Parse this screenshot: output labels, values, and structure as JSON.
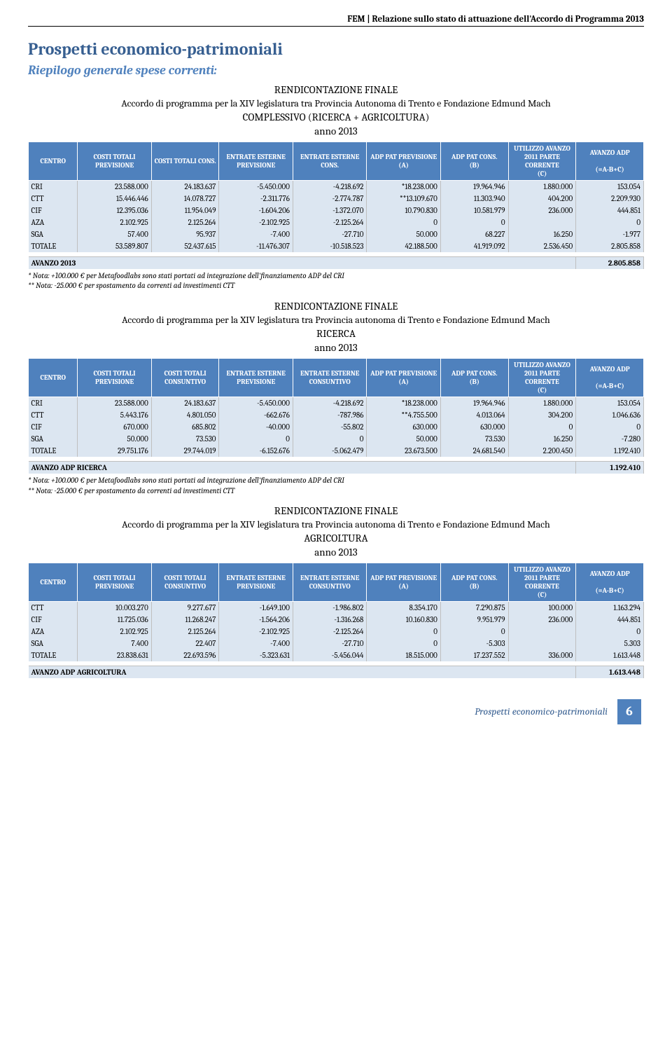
{
  "header": {
    "running": "FEM | Relazione sullo stato di attuazione dell'Accordo di Programma 2013"
  },
  "titles": {
    "h1": "Prospetti economico-patrimoniali",
    "h2": "Riepilogo generale spese correnti:"
  },
  "columns": {
    "centro": "CENTRO",
    "costi_prev": "COSTI TOTALI PREVISIONE",
    "costi_cons": "COSTI TOTALI CONS.",
    "costi_consuntivo": "COSTI TOTALI CONSUNTIVO",
    "entrate_prev": "ENTRATE ESTERNE PREVISIONE",
    "entrate_cons": "ENTRATE ESTERNE CONS.",
    "entrate_consuntivo": "ENTRATE ESTERNE CONSUNTIVO",
    "adp_prev": "ADP PAT PREVISIONE",
    "adp_prev_a": "(A)",
    "adp_cons": "ADP PAT CONS.",
    "adp_cons_b": "(B)",
    "utilizzo": "UTILIZZO AVANZO 2011 PARTE CORRENTE",
    "utilizzo_c": "(C)",
    "avanzo": "AVANZO ADP",
    "avanzo_f": "(=A-B+C)"
  },
  "section1": {
    "title": "RENDICONTAZIONE FINALE",
    "sub": "Accordo di programma per la XIV legislatura tra Provincia Autonoma di Trento e Fondazione Edmund Mach",
    "big": "COMPLESSIVO (RICERCA + AGRICOLTURA)",
    "year": "anno 2013",
    "rows": [
      {
        "c": "CRI",
        "v": [
          "23.588.000",
          "24.183.637",
          "-5.450.000",
          "-4.218.692",
          "*18.238.000",
          "19.964.946",
          "1.880.000",
          "153.054"
        ]
      },
      {
        "c": "CTT",
        "v": [
          "15.446.446",
          "14.078.727",
          "-2.311.776",
          "-2.774.787",
          "**13.109.670",
          "11.303.940",
          "404.200",
          "2.209.930"
        ]
      },
      {
        "c": "CIF",
        "v": [
          "12.395.036",
          "11.954.049",
          "-1.604.206",
          "-1.372.070",
          "10.790.830",
          "10.581.979",
          "236.000",
          "444.851"
        ]
      },
      {
        "c": "AZA",
        "v": [
          "2.102.925",
          "2.125.264",
          "-2.102.925",
          "-2.125.264",
          "0",
          "0",
          "",
          "0"
        ]
      },
      {
        "c": "SGA",
        "v": [
          "57.400",
          "95.937",
          "-7.400",
          "-27.710",
          "50.000",
          "68.227",
          "16.250",
          "-1.977"
        ]
      },
      {
        "c": "TOTALE",
        "v": [
          "53.589.807",
          "52.437.615",
          "-11.476.307",
          "-10.518.523",
          "42.188.500",
          "41.919.092",
          "2.536.450",
          "2.805.858"
        ]
      }
    ],
    "avanzo_label": "AVANZO 2013",
    "avanzo_value": "2.805.858",
    "note1": "*    Nota: +100.000 € per Metafoodlabs sono stati portati ad integrazione dell'finanziamento ADP del CRI",
    "note2": "**  Nota: -25.000 € per spostamento da correnti ad investimenti CTT"
  },
  "section2": {
    "title": "RENDICONTAZIONE FINALE",
    "sub": "Accordo di programma per la XIV legislatura tra Provincia autonoma di Trento e Fondazione Edmund Mach",
    "big": "RICERCA",
    "year": "anno 2013",
    "rows": [
      {
        "c": "CRI",
        "v": [
          "23.588.000",
          "24.183.637",
          "-5.450.000",
          "-4.218.692",
          "*18.238.000",
          "19.964.946",
          "1.880.000",
          "153.054"
        ]
      },
      {
        "c": "CTT",
        "v": [
          "5.443.176",
          "4.801.050",
          "-662.676",
          "-787.986",
          "**4.755.500",
          "4.013.064",
          "304.200",
          "1.046.636"
        ]
      },
      {
        "c": "CIF",
        "v": [
          "670.000",
          "685.802",
          "-40.000",
          "-55.802",
          "630.000",
          "630.000",
          "0",
          "0"
        ]
      },
      {
        "c": "SGA",
        "v": [
          "50.000",
          "73.530",
          "0",
          "0",
          "50.000",
          "73.530",
          "16.250",
          "-7.280"
        ]
      },
      {
        "c": "TOTALE",
        "v": [
          "29.751.176",
          "29.744.019",
          "-6.152.676",
          "-5.062.479",
          "23.673.500",
          "24.681.540",
          "2.200.450",
          "1.192.410"
        ]
      }
    ],
    "avanzo_label": "AVANZO ADP RICERCA",
    "avanzo_value": "1.192.410",
    "note1": "*    Nota: +100.000 € per Metafoodlabs sono stati portati ad integrazione dell'finanziamento ADP del CRI",
    "note2": "**  Nota: -25.000 € per spostamento da correnti ad investimenti CTT"
  },
  "section3": {
    "title": "RENDICONTAZIONE FINALE",
    "sub": "Accordo di programma per la XIV legislatura tra Provincia autonoma di Trento e Fondazione Edmund Mach",
    "big": "AGRICOLTURA",
    "year": "anno 2013",
    "rows": [
      {
        "c": "CTT",
        "v": [
          "10.003.270",
          "9.277.677",
          "-1.649.100",
          "-1.986.802",
          "8.354.170",
          "7.290.875",
          "100.000",
          "1.163.294"
        ]
      },
      {
        "c": "CIF",
        "v": [
          "11.725.036",
          "11.268.247",
          "-1.564.206",
          "-1.316.268",
          "10.160.830",
          "9.951.979",
          "236.000",
          "444.851"
        ]
      },
      {
        "c": "AZA",
        "v": [
          "2.102.925",
          "2.125.264",
          "-2.102.925",
          "-2.125.264",
          "0",
          "0",
          "",
          "0"
        ]
      },
      {
        "c": "SGA",
        "v": [
          "7.400",
          "22.407",
          "-7.400",
          "-27.710",
          "0",
          "-5.303",
          "",
          "5.303"
        ]
      },
      {
        "c": "TOTALE",
        "v": [
          "23.838.631",
          "22.693.596",
          "-5.323.631",
          "-5.456.044",
          "18.515.000",
          "17.237.552",
          "336.000",
          "1.613.448"
        ]
      }
    ],
    "avanzo_label": "AVANZO ADP AGRICOLTURA",
    "avanzo_value": "1.613.448"
  },
  "footer": {
    "label": "Prospetti economico-patrimoniali",
    "page": "6"
  },
  "style": {
    "header_bg": "#4f81bd",
    "cell_bg": "#dce6f1",
    "title_color": "#375f91",
    "subtitle_color": "#4f81bd"
  }
}
